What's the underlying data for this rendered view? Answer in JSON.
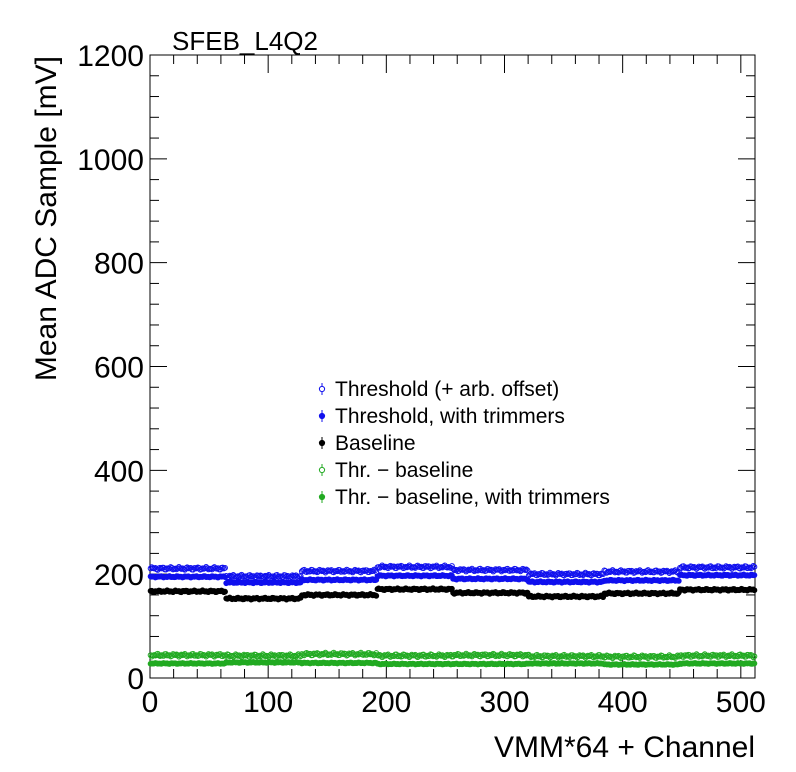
{
  "chart_data": {
    "type": "scatter",
    "title": "SFEB_L4Q2",
    "xlabel": "VMM*64 + Channel",
    "ylabel": "Mean ADC Sample [mV]",
    "xlim": [
      0,
      512
    ],
    "ylim": [
      0,
      1200
    ],
    "x_ticks": [
      0,
      100,
      200,
      300,
      400,
      500
    ],
    "y_ticks": [
      0,
      200,
      400,
      600,
      800,
      1000,
      1200
    ],
    "legend_position": "center",
    "grid": false,
    "vmm_blocks": [
      0,
      64,
      128,
      192,
      256,
      320,
      384,
      448
    ],
    "series": [
      {
        "name": "Threshold (+ arb. offset)",
        "color": "#1010ee",
        "marker": "open-circle",
        "block_levels": [
          211,
          196,
          206,
          214,
          208,
          200,
          205,
          213
        ],
        "jitter": 3
      },
      {
        "name": "Threshold, with trimmers",
        "color": "#1010ee",
        "marker": "filled-circle",
        "block_levels": [
          195,
          184,
          189,
          197,
          191,
          185,
          188,
          198
        ],
        "jitter": 1.5
      },
      {
        "name": "Baseline",
        "color": "#000000",
        "marker": "filled-circle",
        "block_levels": [
          167,
          153,
          160,
          171,
          164,
          157,
          163,
          170
        ],
        "jitter": 2
      },
      {
        "name": "Thr. − baseline",
        "color": "#22aa22",
        "marker": "open-circle",
        "block_levels": [
          44,
          43,
          46,
          43,
          44,
          42,
          41,
          43
        ],
        "jitter": 3
      },
      {
        "name": "Thr. − baseline, with trimmers",
        "color": "#22aa22",
        "marker": "filled-circle",
        "block_levels": [
          28,
          30,
          29,
          27,
          27,
          28,
          26,
          28
        ],
        "jitter": 1
      }
    ]
  }
}
